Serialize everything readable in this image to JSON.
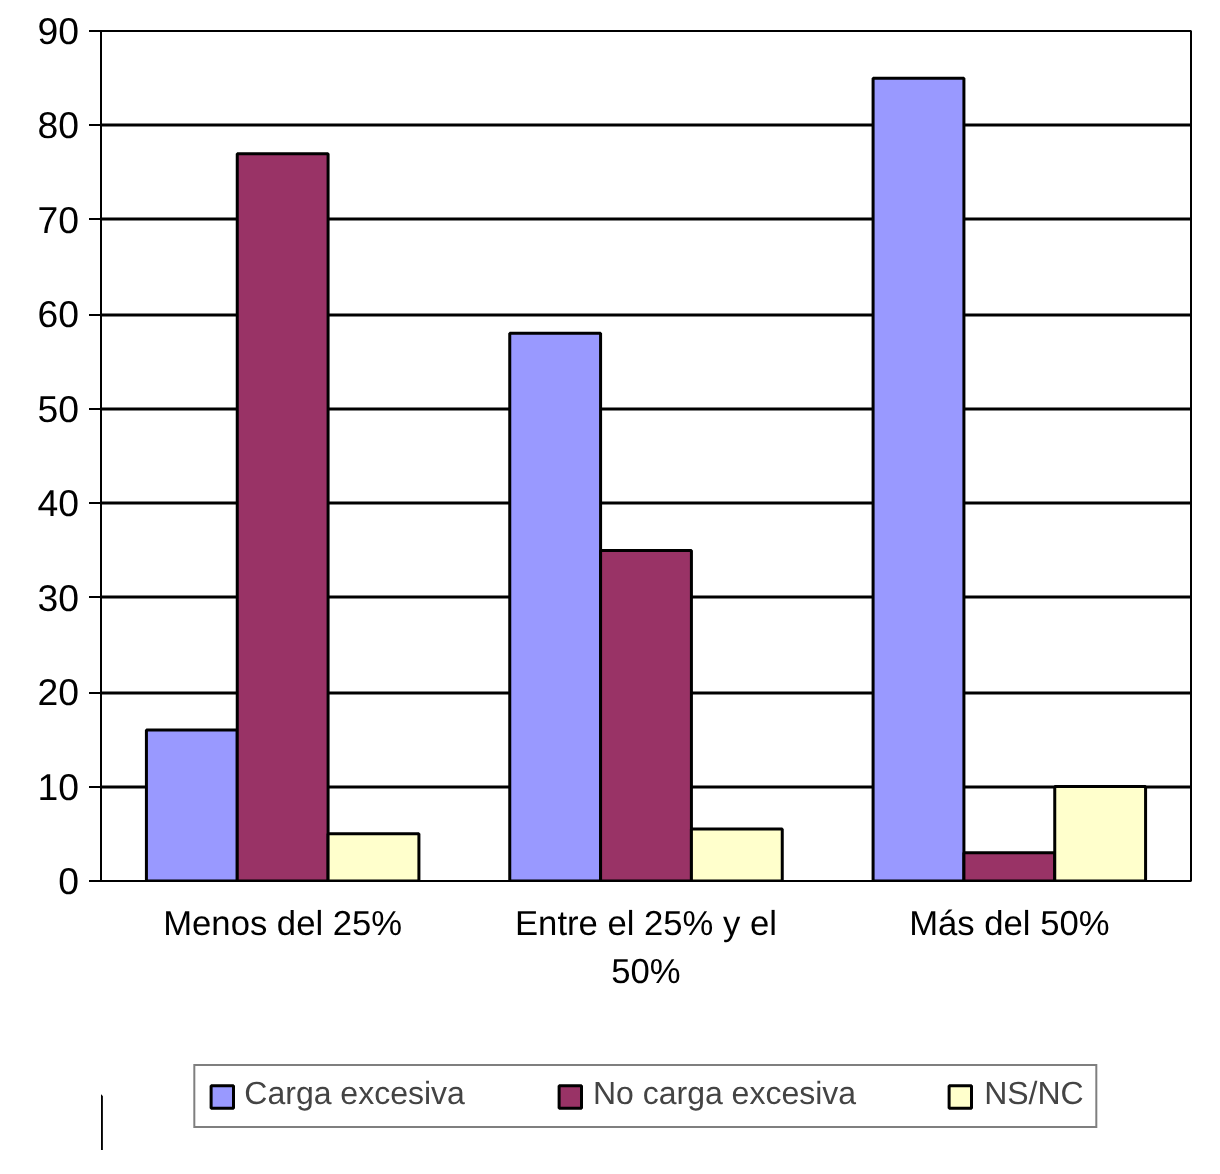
{
  "chart_data": {
    "type": "bar",
    "categories": [
      "Menos del 25%",
      "Entre el 25% y el 50%",
      "Más del 50%"
    ],
    "series": [
      {
        "name": "Carga excesiva",
        "color": "#9999ff",
        "values": [
          16,
          58,
          85
        ]
      },
      {
        "name": "No carga excesiva",
        "color": "#993366",
        "values": [
          77,
          35,
          3
        ]
      },
      {
        "name": "NS/NC",
        "color": "#ffffcc",
        "values": [
          5,
          5.5,
          10
        ]
      }
    ],
    "ylim": [
      0,
      90
    ],
    "yticks": [
      0,
      10,
      20,
      30,
      40,
      50,
      60,
      70,
      80,
      90
    ],
    "grid": "y",
    "legend": "bottom"
  }
}
